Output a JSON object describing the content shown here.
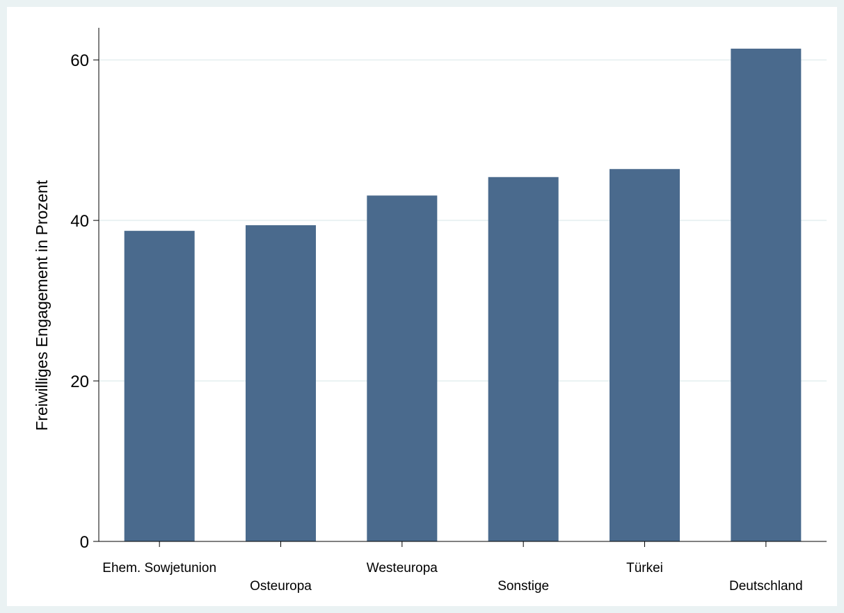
{
  "colors": {
    "background": "#eaf2f3",
    "plot_background": "#ffffff",
    "bar": "#4a6a8d",
    "gridline": "#eaf2f3",
    "axis": "#000000"
  },
  "chart_data": {
    "type": "bar",
    "title": "",
    "xlabel": "",
    "ylabel": "Freiwilliges Engagement in Prozent",
    "categories": [
      "Ehem. Sowjetunion",
      "Osteuropa",
      "Westeuropa",
      "Sonstige",
      "Türkei",
      "Deutschland"
    ],
    "values": [
      38.7,
      39.4,
      43.1,
      45.4,
      46.4,
      61.4
    ],
    "ylim": [
      0,
      64
    ],
    "yticks": [
      0,
      20,
      40,
      60
    ],
    "grid": true,
    "legend": "none"
  }
}
